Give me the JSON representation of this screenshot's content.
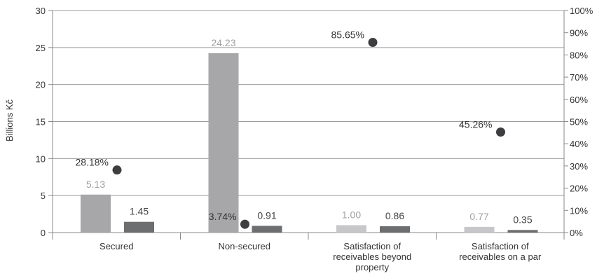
{
  "chart_data": {
    "type": "bar",
    "ylabel": "Billions Kč",
    "ylim": [
      0,
      30
    ],
    "yticks": [
      0,
      5,
      10,
      15,
      20,
      25,
      30
    ],
    "y2lim": [
      0,
      1
    ],
    "y2ticks": [
      "0%",
      "10%",
      "20%",
      "30%",
      "40%",
      "50%",
      "60%",
      "70%",
      "80%",
      "90%",
      "100%"
    ],
    "grid": true,
    "legend": "none",
    "categories": [
      [
        "Secured"
      ],
      [
        "Non-secured"
      ],
      [
        "Satisfaction of",
        "receivables beyond",
        "property"
      ],
      [
        "Satisfaction of",
        "receivables on a par"
      ]
    ],
    "series": [
      {
        "values": [
          5.13,
          24.23,
          1.0,
          0.77
        ],
        "labels": [
          "5.13",
          "24.23",
          "1.00",
          "0.77"
        ],
        "colors": [
          "#a7a7a9",
          "#a7a7a9",
          "#c7c7c9",
          "#c7c7c9"
        ],
        "label_color": "#a0a0a0"
      },
      {
        "values": [
          1.45,
          0.91,
          0.86,
          0.35
        ],
        "labels": [
          "1.45",
          "0.91",
          "0.86",
          "0.35"
        ],
        "color": "#6d6e70",
        "label_color": "#444444"
      },
      {
        "type": "scatter",
        "axis": "secondary",
        "values": [
          0.2818,
          0.0374,
          0.8565,
          0.4526
        ],
        "labels": [
          "28.18%",
          "3.74%",
          "85.65%",
          "45.26%"
        ],
        "color": "#3e3e40",
        "label_color": "#333333"
      }
    ]
  }
}
